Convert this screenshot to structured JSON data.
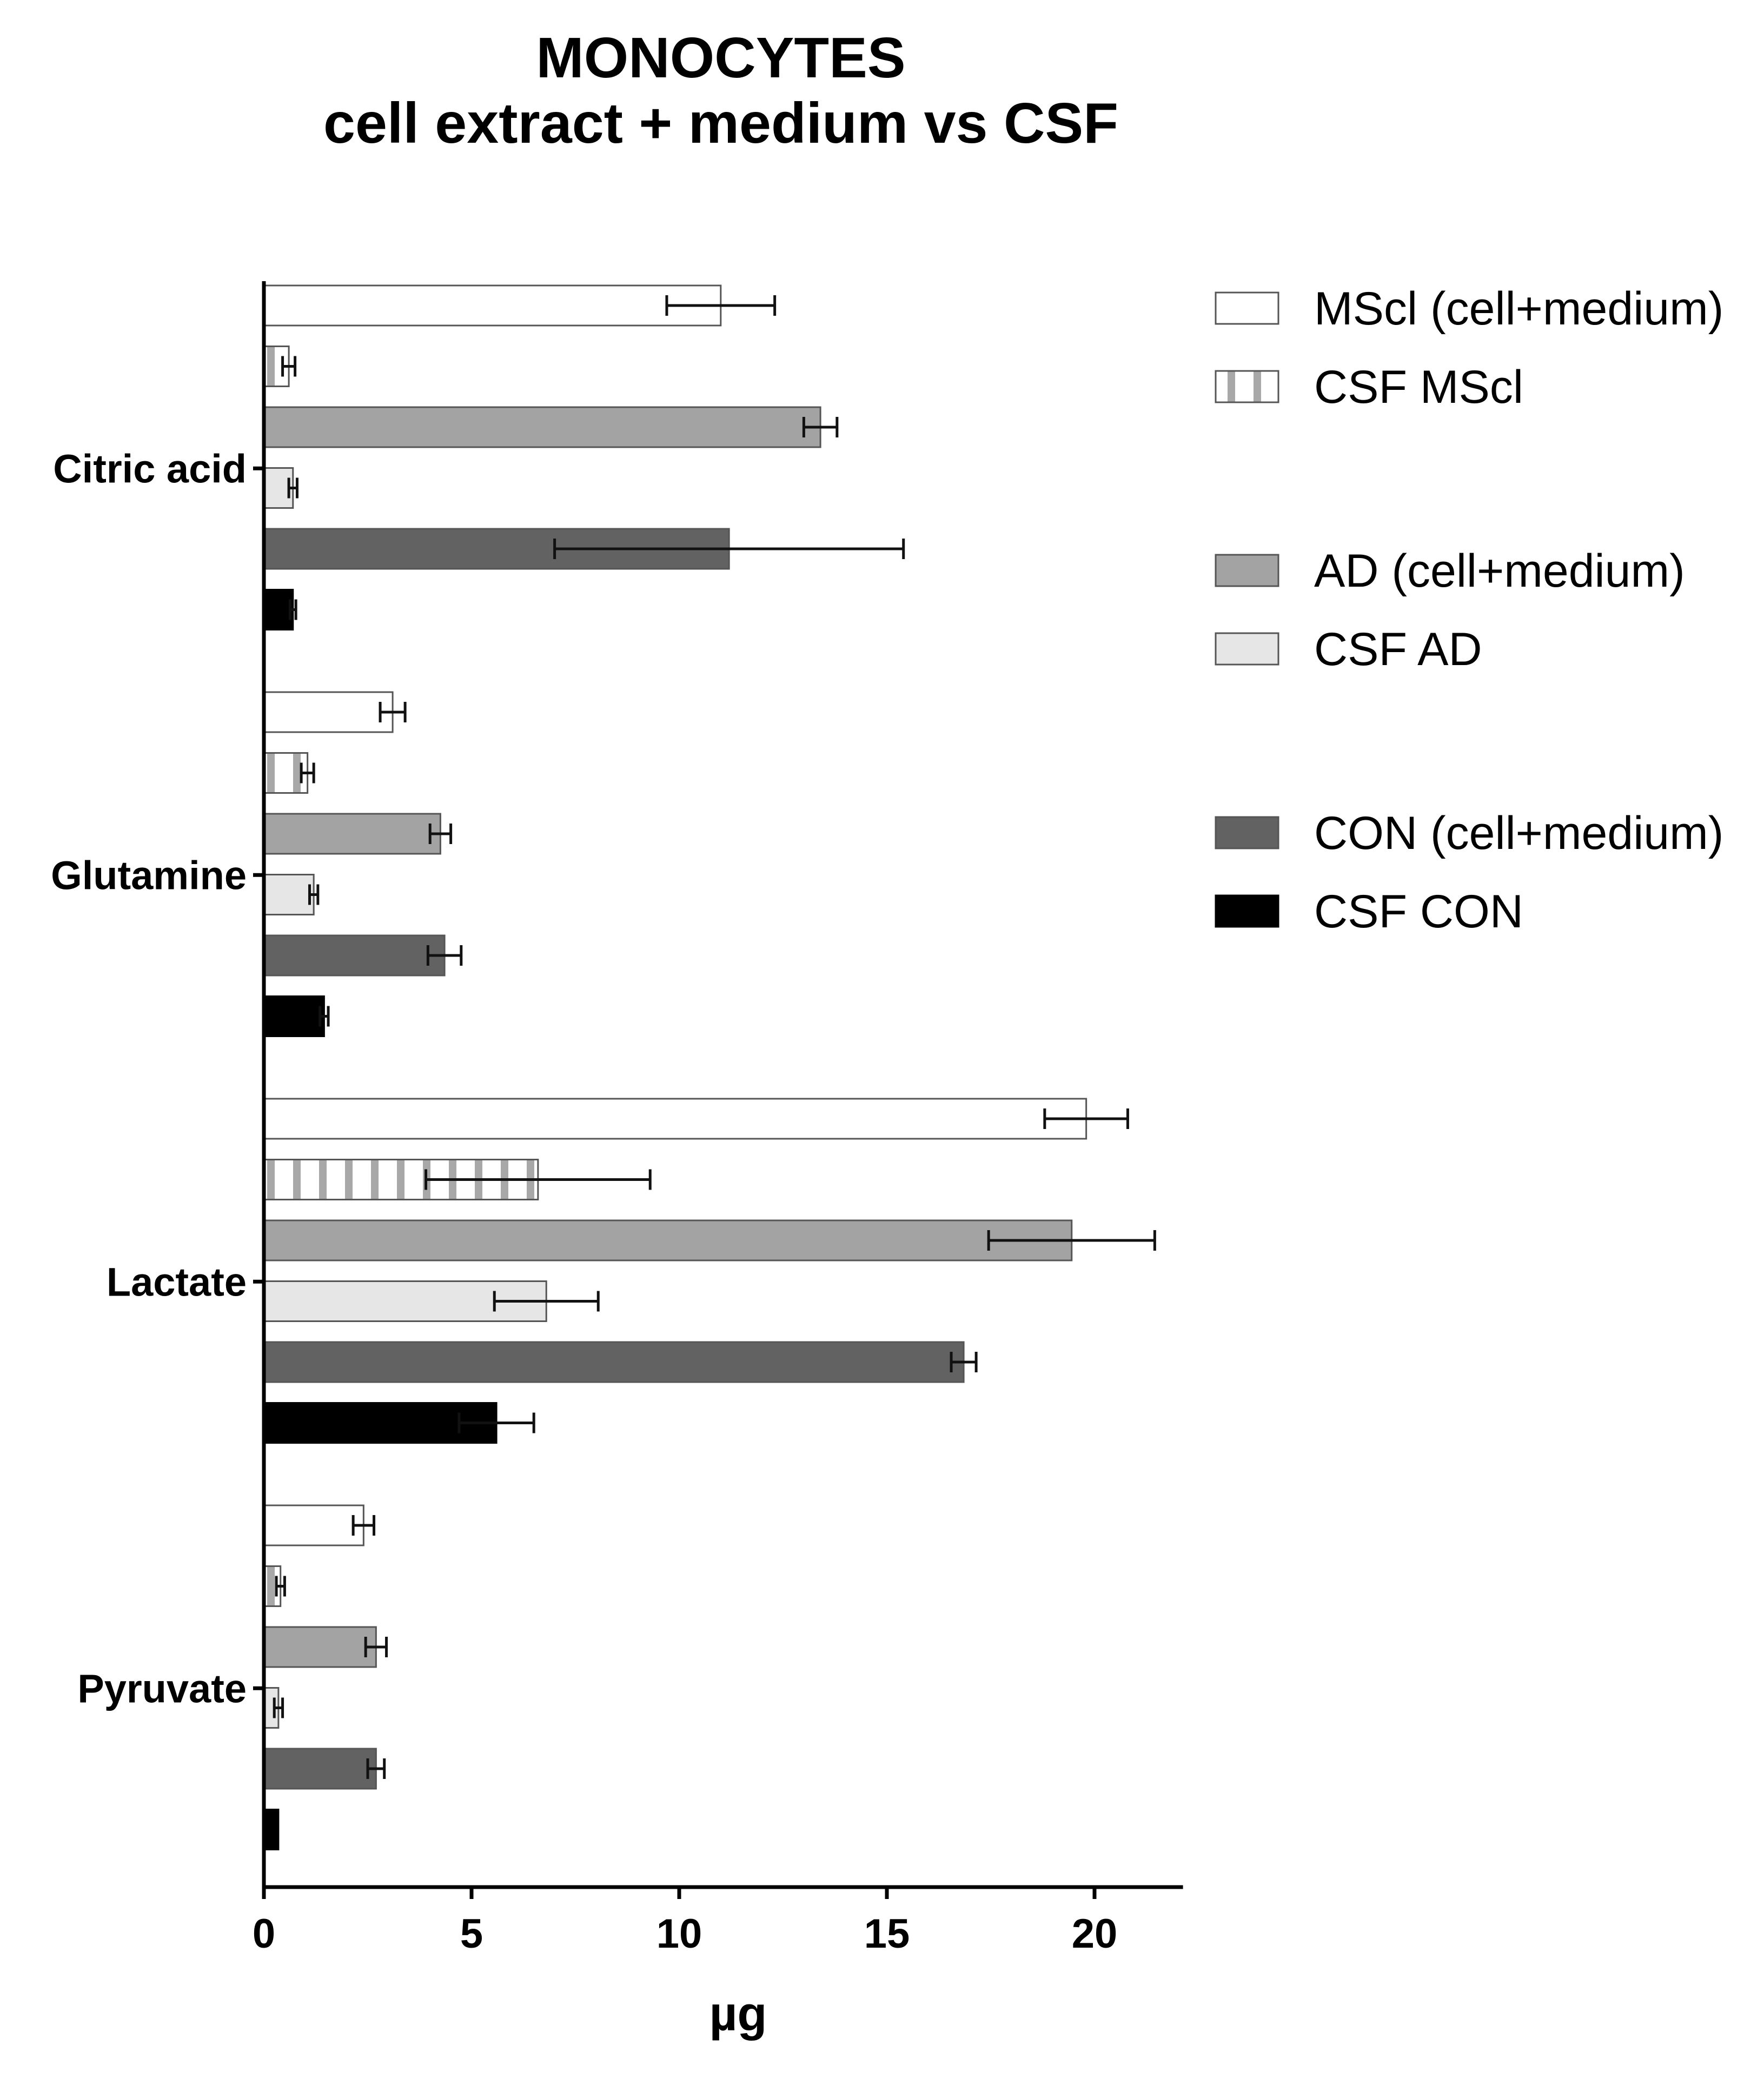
{
  "chart_data": {
    "type": "bar",
    "orientation": "horizontal",
    "title": [
      "MONOCYTES",
      "cell extract + medium vs CSF"
    ],
    "xlabel": "µg",
    "ylabel": "",
    "xlim": [
      0,
      22
    ],
    "xticks": [
      0,
      5,
      10,
      15,
      20
    ],
    "categories": [
      "Citric acid",
      "Glutamine",
      "Lactate",
      "Pyruvate"
    ],
    "series": [
      {
        "name": "MScl (cell+medium)",
        "fill": "#ffffff",
        "pattern": "none",
        "values": [
          11.0,
          3.1,
          19.8,
          2.4
        ],
        "errors": [
          1.3,
          0.3,
          1.0,
          0.25
        ]
      },
      {
        "name": "CSF MScl",
        "fill": "#ffffff",
        "pattern": "vertical-stripes",
        "stripe_color": "#a8a8a8",
        "values": [
          0.6,
          1.05,
          6.6,
          0.4
        ],
        "errors": [
          0.15,
          0.15,
          2.7,
          0.1
        ]
      },
      {
        "name": "AD (cell+medium)",
        "fill": "#a3a3a3",
        "pattern": "none",
        "values": [
          13.4,
          4.25,
          19.45,
          2.7
        ],
        "errors": [
          0.4,
          0.25,
          2.0,
          0.25
        ]
      },
      {
        "name": "CSF AD",
        "fill": "#e6e6e6",
        "pattern": "none",
        "values": [
          0.7,
          1.2,
          6.8,
          0.35
        ],
        "errors": [
          0.1,
          0.1,
          1.25,
          0.1
        ]
      },
      {
        "name": "CON (cell+medium)",
        "fill": "#626262",
        "pattern": "none",
        "values": [
          11.2,
          4.35,
          16.85,
          2.7
        ],
        "errors": [
          4.2,
          0.4,
          0.3,
          0.2
        ]
      },
      {
        "name": "CSF CON",
        "fill": "#000000",
        "pattern": "none",
        "values": [
          0.7,
          1.45,
          5.6,
          0.35
        ],
        "errors": [
          0.07,
          0.1,
          0.9,
          0.0
        ]
      }
    ],
    "legend": {
      "placement": "right",
      "groups": [
        [
          0,
          1
        ],
        [
          2,
          3
        ],
        [
          4,
          5
        ]
      ]
    },
    "grid": false
  }
}
